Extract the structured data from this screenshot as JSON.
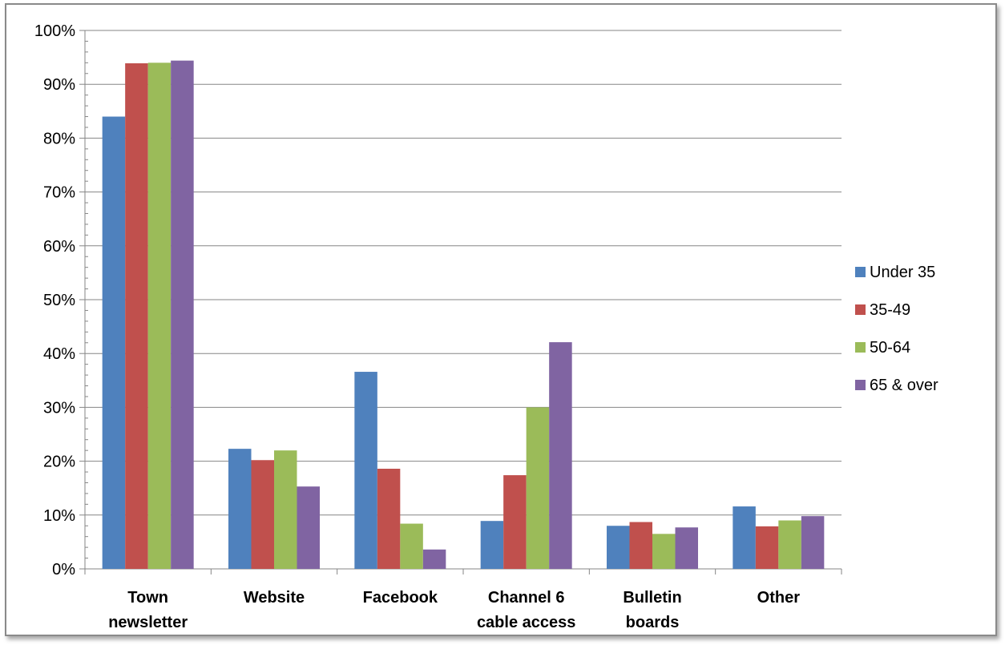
{
  "chart_data": {
    "type": "bar",
    "title": "",
    "xlabel": "",
    "ylabel": "",
    "ylim": [
      0,
      100
    ],
    "yticks": [
      "0%",
      "10%",
      "20%",
      "30%",
      "40%",
      "50%",
      "60%",
      "70%",
      "80%",
      "90%",
      "100%"
    ],
    "grid": true,
    "legend_position": "right",
    "categories": [
      [
        "Town",
        "newsletter"
      ],
      [
        "Website"
      ],
      [
        "Facebook"
      ],
      [
        "Channel 6",
        "cable access"
      ],
      [
        "Bulletin",
        "boards"
      ],
      [
        "Other"
      ]
    ],
    "series": [
      {
        "name": "Under 35",
        "color": "#4f81bd",
        "values": [
          84,
          22.3,
          36.6,
          8.9,
          8.0,
          11.6
        ]
      },
      {
        "name": "35-49",
        "color": "#c0504d",
        "values": [
          93.9,
          20.2,
          18.6,
          17.4,
          8.7,
          7.9
        ]
      },
      {
        "name": "50-64",
        "color": "#9bbb59",
        "values": [
          94.0,
          22.0,
          8.4,
          30.0,
          6.5,
          9.0
        ]
      },
      {
        "name": "65 & over",
        "color": "#8064a2",
        "values": [
          94.4,
          15.3,
          3.6,
          42.1,
          7.7,
          9.8
        ]
      }
    ]
  }
}
